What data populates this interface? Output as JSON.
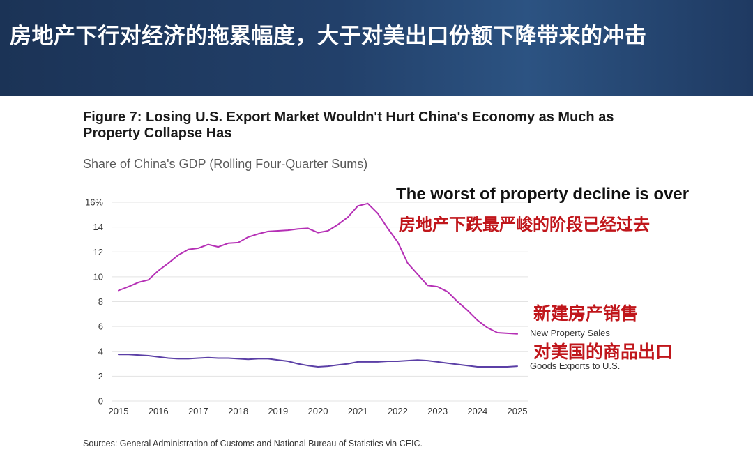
{
  "banner": {
    "title": "房地产下行对经济的拖累幅度，大于对美出口份额下降带来的冲击"
  },
  "annotations": {
    "headline_en": "The worst of property decline is over",
    "headline_cn": "房地产下跌最严峻的阶段已经过去",
    "property_cn": "新建房产销售",
    "exports_cn": "对美国的商品出口"
  },
  "source": "Sources: General Administration of Customs and National Bureau of Statistics via CEIC.",
  "colors": {
    "banner": "#22406a",
    "property_line": "#b52fb5",
    "exports_line": "#5b3fa6",
    "annotation_red": "#c0161b",
    "grid": "#e3e3e3"
  },
  "chart_data": {
    "type": "line",
    "title": "Figure 7: Losing U.S. Export Market Wouldn't Hurt China's Economy as Much as Property Collapse Has",
    "subtitle": "Share of China's GDP (Rolling Four-Quarter Sums)",
    "xlabel": "",
    "ylabel": "",
    "xlim": [
      2015,
      2025
    ],
    "ylim": [
      0,
      16
    ],
    "x_ticks": [
      "2015",
      "2016",
      "2017",
      "2018",
      "2019",
      "2020",
      "2021",
      "2022",
      "2023",
      "2024",
      "2025"
    ],
    "y_ticks": [
      "0",
      "2",
      "4",
      "6",
      "8",
      "10",
      "12",
      "14",
      "16%"
    ],
    "y_tick_values": [
      0,
      2,
      4,
      6,
      8,
      10,
      12,
      14,
      16
    ],
    "grid": true,
    "legend": "direct labels at line ends",
    "series": [
      {
        "name": "New Property Sales",
        "x": [
          2015.0,
          2015.25,
          2015.5,
          2015.75,
          2016.0,
          2016.25,
          2016.5,
          2016.75,
          2017.0,
          2017.25,
          2017.5,
          2017.75,
          2018.0,
          2018.25,
          2018.5,
          2018.75,
          2019.0,
          2019.25,
          2019.5,
          2019.75,
          2020.0,
          2020.25,
          2020.5,
          2020.75,
          2021.0,
          2021.25,
          2021.5,
          2021.75,
          2022.0,
          2022.25,
          2022.5,
          2022.75,
          2023.0,
          2023.25,
          2023.5,
          2023.75,
          2024.0,
          2024.25,
          2024.5,
          2024.75,
          2025.0
        ],
        "values": [
          8.9,
          9.2,
          9.55,
          9.75,
          10.5,
          11.1,
          11.75,
          12.2,
          12.3,
          12.6,
          12.4,
          12.7,
          12.75,
          13.2,
          13.45,
          13.65,
          13.7,
          13.75,
          13.85,
          13.9,
          13.55,
          13.7,
          14.2,
          14.8,
          15.7,
          15.9,
          15.1,
          13.9,
          12.8,
          11.1,
          10.2,
          9.3,
          9.2,
          8.8,
          8.0,
          7.3,
          6.5,
          5.9,
          5.5,
          5.45,
          5.4
        ]
      },
      {
        "name": "Goods Exports to U.S.",
        "x": [
          2015.0,
          2015.25,
          2015.5,
          2015.75,
          2016.0,
          2016.25,
          2016.5,
          2016.75,
          2017.0,
          2017.25,
          2017.5,
          2017.75,
          2018.0,
          2018.25,
          2018.5,
          2018.75,
          2019.0,
          2019.25,
          2019.5,
          2019.75,
          2020.0,
          2020.25,
          2020.5,
          2020.75,
          2021.0,
          2021.25,
          2021.5,
          2021.75,
          2022.0,
          2022.25,
          2022.5,
          2022.75,
          2023.0,
          2023.25,
          2023.5,
          2023.75,
          2024.0,
          2024.25,
          2024.5,
          2024.75,
          2025.0
        ],
        "values": [
          3.75,
          3.75,
          3.7,
          3.65,
          3.55,
          3.45,
          3.4,
          3.4,
          3.45,
          3.5,
          3.45,
          3.45,
          3.4,
          3.35,
          3.4,
          3.4,
          3.3,
          3.2,
          3.0,
          2.85,
          2.75,
          2.8,
          2.9,
          3.0,
          3.15,
          3.15,
          3.15,
          3.2,
          3.2,
          3.25,
          3.3,
          3.25,
          3.15,
          3.05,
          2.95,
          2.85,
          2.75,
          2.75,
          2.75,
          2.75,
          2.8
        ]
      }
    ]
  }
}
